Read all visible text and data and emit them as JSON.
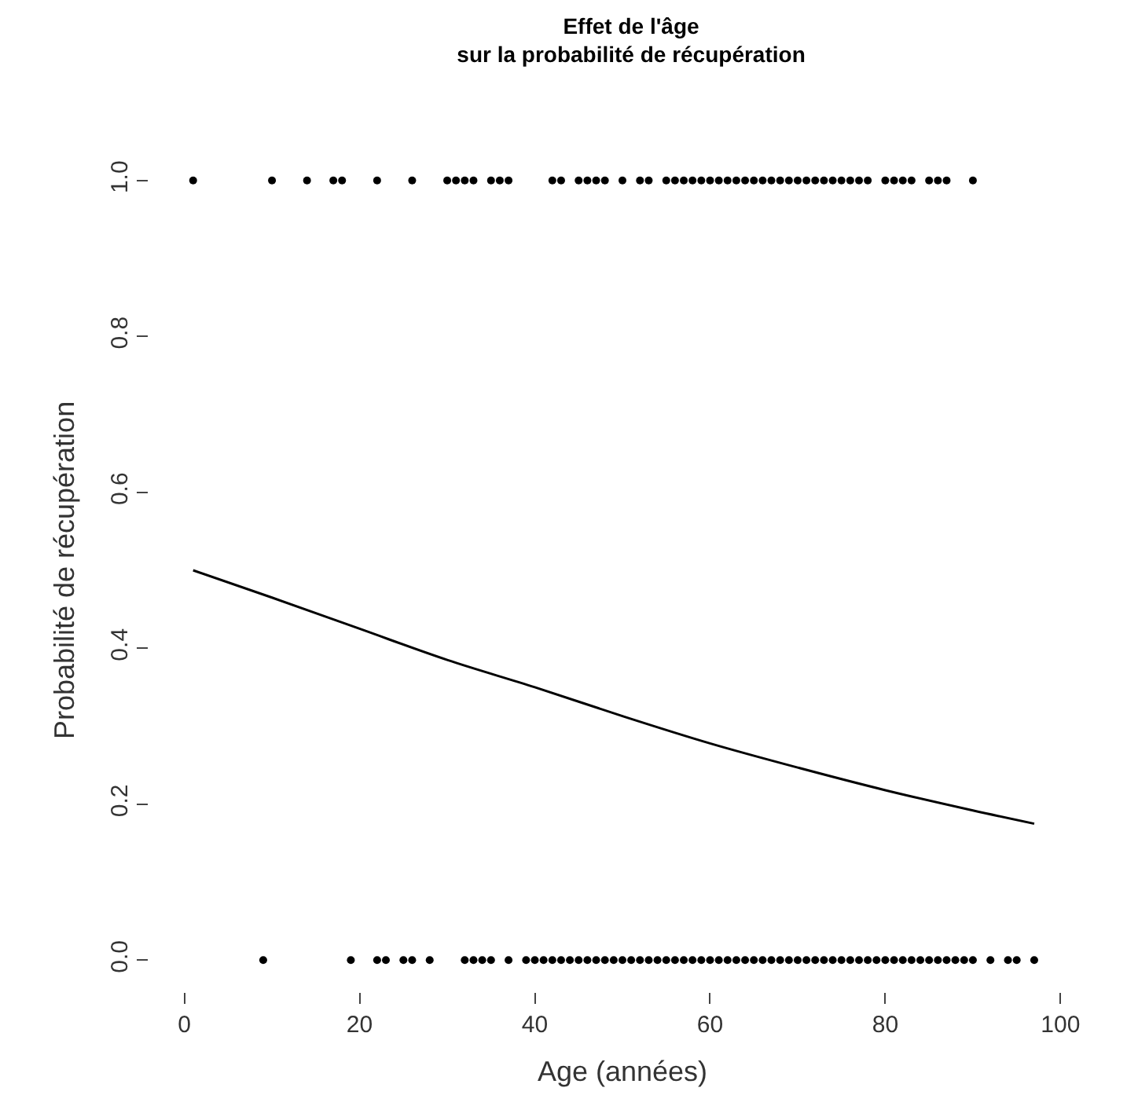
{
  "chart_data": {
    "type": "scatter",
    "title": "Effet de l'âge\nsur la probabilité de récupération",
    "xlabel": "Age (années)",
    "ylabel": "Probabilité de récupération",
    "xlim": [
      0,
      100
    ],
    "xticks": [
      0,
      20,
      40,
      60,
      80,
      100
    ],
    "ylim": [
      0,
      1
    ],
    "yticks": [
      {
        "value": 0,
        "label": "0.0"
      },
      0.2,
      0.4,
      0.6,
      0.8,
      {
        "value": 1,
        "label": "1.0"
      }
    ],
    "marker": "circle",
    "series": [
      {
        "color": "#000000",
        "x": [
          1,
          10,
          14,
          17,
          18,
          22,
          26,
          30,
          31,
          32,
          33,
          35,
          36,
          37,
          42,
          43,
          45,
          46,
          47,
          48,
          50,
          52,
          53,
          55,
          56,
          57,
          58,
          59,
          60,
          61,
          62,
          63,
          64,
          65,
          66,
          67,
          68,
          69,
          70,
          71,
          72,
          73,
          74,
          75,
          76,
          77,
          78,
          80,
          81,
          82,
          83,
          85,
          86,
          87,
          90
        ],
        "values": [
          1,
          1,
          1,
          1,
          1,
          1,
          1,
          1,
          1,
          1,
          1,
          1,
          1,
          1,
          1,
          1,
          1,
          1,
          1,
          1,
          1,
          1,
          1,
          1,
          1,
          1,
          1,
          1,
          1,
          1,
          1,
          1,
          1,
          1,
          1,
          1,
          1,
          1,
          1,
          1,
          1,
          1,
          1,
          1,
          1,
          1,
          1,
          1,
          1,
          1,
          1,
          1,
          1,
          1,
          1
        ]
      },
      {
        "color": "#000000",
        "x": [
          9,
          19,
          22,
          23,
          25,
          26,
          28,
          32,
          33,
          34,
          35,
          37,
          39,
          40,
          41,
          42,
          43,
          44,
          45,
          46,
          47,
          48,
          49,
          50,
          51,
          52,
          53,
          54,
          55,
          56,
          57,
          58,
          59,
          60,
          61,
          62,
          63,
          64,
          65,
          66,
          67,
          68,
          69,
          70,
          71,
          72,
          73,
          74,
          75,
          76,
          77,
          78,
          79,
          80,
          81,
          82,
          83,
          84,
          85,
          86,
          87,
          88,
          89,
          90,
          92,
          94,
          95,
          97
        ],
        "values": [
          0,
          0,
          0,
          0,
          0,
          0,
          0,
          0,
          0,
          0,
          0,
          0,
          0,
          0,
          0,
          0,
          0,
          0,
          0,
          0,
          0,
          0,
          0,
          0,
          0,
          0,
          0,
          0,
          0,
          0,
          0,
          0,
          0,
          0,
          0,
          0,
          0,
          0,
          0,
          0,
          0,
          0,
          0,
          0,
          0,
          0,
          0,
          0,
          0,
          0,
          0,
          0,
          0,
          0,
          0,
          0,
          0,
          0,
          0,
          0,
          0,
          0,
          0,
          0,
          0,
          0,
          0,
          0
        ]
      },
      {
        "type": "line",
        "color": "#000000",
        "marker": "none",
        "line_style": "solid",
        "x": [
          1,
          10,
          20,
          30,
          40,
          50,
          60,
          70,
          80,
          90,
          97
        ],
        "values": [
          0.5,
          0.465,
          0.425,
          0.385,
          0.35,
          0.313,
          0.278,
          0.247,
          0.218,
          0.192,
          0.175
        ]
      }
    ]
  }
}
